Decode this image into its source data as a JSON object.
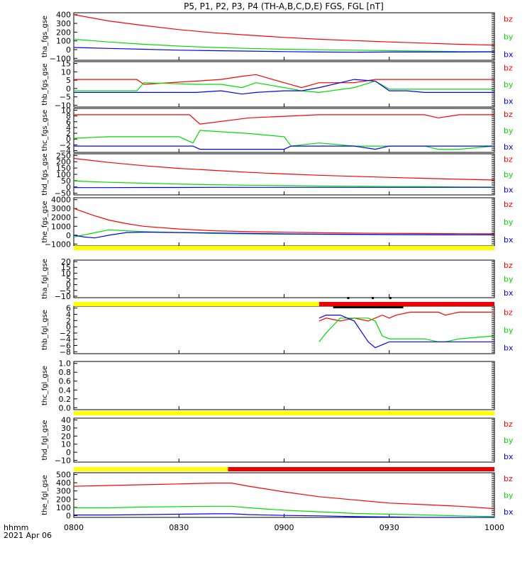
{
  "title": "P5, P1, P2, P3, P4 (TH-A,B,C,D,E) FGS, FGL [nT]",
  "footer": {
    "label1": "hhmm",
    "label2": "2021 Apr 06"
  },
  "xticks": [
    "0800",
    "0830",
    "0900",
    "0930",
    "1000"
  ],
  "colors": {
    "bx": "#0000ff",
    "by": "#00dd00",
    "bz": "#ff0000",
    "bar_yellow": "#ffff00",
    "bar_red": "#ee0000",
    "bar_black": "#000000"
  },
  "chart_data": [
    {
      "type": "line",
      "name": "tha_fgs_gse",
      "ylabel": "tha_fgs_gse",
      "x_range": [
        "0800",
        "1000"
      ],
      "yticks": [
        "400",
        "300",
        "200",
        "100",
        "0",
        "−100"
      ],
      "ylim": [
        -100,
        420
      ],
      "legend": [
        "bz",
        "by",
        "bx"
      ],
      "series": [
        {
          "name": "bz",
          "x": [
            0,
            10,
            20,
            30,
            40,
            50,
            60,
            70,
            80,
            90,
            100,
            110,
            120
          ],
          "y": [
            400,
            330,
            280,
            235,
            200,
            175,
            150,
            130,
            115,
            100,
            88,
            75,
            65
          ]
        },
        {
          "name": "by",
          "x": [
            0,
            10,
            20,
            30,
            40,
            50,
            60,
            70,
            80,
            90,
            100,
            110,
            120
          ],
          "y": [
            130,
            100,
            75,
            55,
            40,
            30,
            20,
            15,
            10,
            5,
            0,
            -5,
            -5
          ]
        },
        {
          "name": "bx",
          "x": [
            0,
            10,
            20,
            30,
            40,
            50,
            60,
            70,
            80,
            90,
            100,
            110,
            120
          ],
          "y": [
            40,
            30,
            20,
            10,
            5,
            0,
            -5,
            -10,
            -12,
            -10,
            -10,
            -10,
            -8
          ]
        }
      ]
    },
    {
      "type": "line",
      "name": "thb_fgs_gse",
      "ylabel": "thb_fgs_gse",
      "x_range": [
        "0800",
        "1000"
      ],
      "yticks": [
        "15",
        "10",
        "5",
        "0",
        "−5",
        "−10"
      ],
      "ylim": [
        -12,
        16
      ],
      "legend": [
        "bz",
        "by",
        "bx"
      ],
      "series": [
        {
          "name": "bz",
          "x": [
            0,
            10,
            18,
            20,
            35,
            42,
            48,
            52,
            60,
            65,
            70,
            80,
            86,
            90,
            95,
            100,
            110,
            120
          ],
          "y": [
            5,
            5,
            5,
            2,
            4,
            5,
            7,
            8,
            3,
            0,
            3,
            3,
            5,
            5,
            5,
            5,
            5,
            5
          ]
        },
        {
          "name": "by",
          "x": [
            0,
            10,
            18,
            20,
            35,
            42,
            48,
            52,
            60,
            65,
            70,
            80,
            86,
            90,
            95,
            100,
            110,
            120
          ],
          "y": [
            -2,
            -2,
            -2,
            3,
            2,
            2,
            0,
            3,
            0,
            -2,
            -3,
            0,
            4,
            -1,
            -1,
            -1,
            -1,
            -1
          ]
        },
        {
          "name": "bx",
          "x": [
            0,
            10,
            18,
            20,
            35,
            42,
            48,
            52,
            60,
            65,
            70,
            80,
            86,
            90,
            95,
            100,
            110,
            120
          ],
          "y": [
            -3,
            -3,
            -3,
            -3,
            -3,
            -2,
            -4,
            -3,
            -2,
            -2,
            0,
            5,
            4,
            -2,
            -2,
            -3,
            -3,
            -3
          ]
        }
      ]
    },
    {
      "type": "line",
      "name": "thc_fgs_gse",
      "ylabel": "thc_fgs_gse",
      "x_range": [
        "0800",
        "1000"
      ],
      "yticks": [
        "10",
        "8",
        "6",
        "4",
        "2",
        "0",
        "−2",
        "−4"
      ],
      "ylim": [
        -4,
        10
      ],
      "legend": [
        "bz",
        "by",
        "bx"
      ],
      "series": [
        {
          "name": "bz",
          "x": [
            0,
            10,
            20,
            33,
            36,
            50,
            60,
            70,
            80,
            90,
            100,
            104,
            110,
            120
          ],
          "y": [
            8,
            8,
            8,
            8,
            5,
            7,
            7.5,
            8,
            8,
            8,
            8,
            7,
            8,
            8
          ],
          "__": 0
        },
        {
          "name": "by",
          "x": [
            0,
            10,
            20,
            30,
            34,
            36,
            50,
            60,
            62,
            70,
            80,
            90,
            100,
            104,
            110,
            120
          ],
          "y": [
            0.5,
            1,
            1,
            1,
            -1,
            3,
            2,
            1,
            -2,
            -1,
            -2,
            -2,
            -2,
            -3,
            -3,
            -2
          ]
        },
        {
          "name": "bx",
          "x": [
            0,
            10,
            20,
            34,
            36,
            50,
            60,
            62,
            70,
            80,
            86,
            90,
            100,
            104,
            110,
            120
          ],
          "y": [
            -2,
            -2,
            -2,
            -2,
            -3,
            -3,
            -3,
            -2,
            -2,
            -2,
            -3,
            -2,
            -2,
            -2,
            -2,
            -2
          ]
        }
      ]
    },
    {
      "type": "line",
      "name": "thd_fgs_gse",
      "ylabel": "thd_fgs_gse",
      "x_range": [
        "0800",
        "1000"
      ],
      "yticks": [
        "250",
        "200",
        "150",
        "100",
        "50",
        "0",
        "−50"
      ],
      "ylim": [
        -50,
        260
      ],
      "legend": [
        "bz",
        "by",
        "bx"
      ],
      "series": [
        {
          "name": "bz",
          "x": [
            0,
            10,
            20,
            30,
            40,
            50,
            60,
            70,
            80,
            90,
            100,
            110,
            120
          ],
          "y": [
            225,
            195,
            170,
            150,
            135,
            120,
            108,
            98,
            90,
            82,
            75,
            68,
            62
          ]
        },
        {
          "name": "by",
          "x": [
            0,
            10,
            20,
            30,
            40,
            50,
            60,
            70,
            80,
            90,
            100,
            110,
            120
          ],
          "y": [
            55,
            45,
            38,
            32,
            27,
            23,
            20,
            17,
            15,
            13,
            12,
            10,
            9
          ]
        },
        {
          "name": "bx",
          "x": [
            0,
            10,
            20,
            30,
            40,
            50,
            60,
            70,
            80,
            90,
            100,
            110,
            120
          ],
          "y": [
            5,
            5,
            6,
            6,
            7,
            7,
            7,
            7,
            7,
            7,
            7,
            7,
            7
          ]
        }
      ]
    },
    {
      "type": "line",
      "name": "the_fgs_gse",
      "ylabel": "the_fgs_gse",
      "x_range": [
        "0800",
        "1000"
      ],
      "yticks": [
        "4000",
        "3000",
        "2000",
        "1000",
        "0",
        "−1000"
      ],
      "ylim": [
        -1200,
        4200
      ],
      "legend": [
        "bz",
        "by",
        "bx"
      ],
      "series": [
        {
          "name": "bz",
          "x": [
            0,
            5,
            10,
            15,
            20,
            30,
            40,
            50,
            60,
            70,
            80,
            90,
            100,
            110,
            120
          ],
          "y": [
            3000,
            2300,
            1700,
            1300,
            1000,
            700,
            500,
            400,
            330,
            280,
            240,
            210,
            190,
            170,
            160
          ]
        },
        {
          "name": "by",
          "x": [
            0,
            5,
            10,
            15,
            20,
            30,
            40,
            50,
            60,
            70,
            80,
            90,
            100,
            110,
            120
          ],
          "y": [
            -200,
            200,
            600,
            500,
            400,
            300,
            200,
            150,
            120,
            100,
            80,
            60,
            50,
            40,
            40
          ]
        },
        {
          "name": "bx",
          "x": [
            0,
            3,
            6,
            10,
            15,
            20,
            30,
            40,
            50,
            60,
            70,
            80,
            90,
            100,
            110,
            120
          ],
          "y": [
            0,
            -200,
            -300,
            0,
            300,
            350,
            300,
            250,
            200,
            150,
            120,
            100,
            80,
            60,
            50,
            50
          ]
        }
      ]
    },
    {
      "type": "line",
      "name": "tha_fgl_gse",
      "ylabel": "tha_fgl_gse",
      "x_range": [
        "0800",
        "1000"
      ],
      "yticks": [
        "20",
        "15",
        "10",
        "5",
        "0",
        "−5",
        "−10"
      ],
      "ylim": [
        -12,
        22
      ],
      "legend": [
        "bz",
        "by",
        "bx"
      ],
      "series": []
    },
    {
      "type": "line",
      "name": "thb_fgl_gse",
      "ylabel": "thb_fgl_gse",
      "x_range": [
        "0800",
        "1000"
      ],
      "yticks": [
        "6",
        "4",
        "2",
        "0",
        "−2",
        "−4",
        "−6",
        "−8"
      ],
      "ylim": [
        -9,
        7
      ],
      "legend": [
        "bz",
        "by",
        "bx"
      ],
      "series": [
        {
          "name": "bz",
          "x": [
            70,
            72,
            76,
            80,
            84,
            86,
            88,
            90,
            92,
            96,
            100,
            104,
            106,
            110,
            120
          ],
          "y": [
            2,
            3,
            2,
            3,
            2,
            3,
            4,
            3,
            4,
            5,
            5,
            5,
            4,
            5,
            5
          ]
        },
        {
          "name": "by",
          "x": [
            70,
            72,
            76,
            80,
            84,
            86,
            88,
            90,
            92,
            96,
            100,
            104,
            106,
            110,
            120
          ],
          "y": [
            -5,
            -2,
            3,
            3,
            3,
            2,
            -3,
            -4,
            -4,
            -4,
            -4,
            -5,
            -5,
            -4,
            -3
          ]
        },
        {
          "name": "bx",
          "x": [
            70,
            72,
            76,
            80,
            84,
            86,
            88,
            90,
            92,
            96,
            100,
            104,
            106,
            110,
            120
          ],
          "y": [
            3,
            4,
            4,
            2,
            -5,
            -7,
            -6,
            -5,
            -5,
            -5,
            -5,
            -5,
            -5,
            -5,
            -5
          ]
        }
      ]
    },
    {
      "type": "line",
      "name": "thc_fgl_gse",
      "ylabel": "thc_fgl_gse",
      "x_range": [
        "0800",
        "1000"
      ],
      "yticks": [
        "1.0",
        "0.8",
        "0.6",
        "0.4",
        "0.2",
        "0.0"
      ],
      "ylim": [
        -0.1,
        1.1
      ],
      "legend": [],
      "series": []
    },
    {
      "type": "line",
      "name": "thd_fgl_gse",
      "ylabel": "thd_fgl_gse",
      "x_range": [
        "0800",
        "1000"
      ],
      "yticks": [
        "40",
        "30",
        "20",
        "10",
        "0",
        "−10"
      ],
      "ylim": [
        -12,
        44
      ],
      "legend": [
        "bz",
        "by",
        "bx"
      ],
      "series": []
    },
    {
      "type": "line",
      "name": "the_fgl_gse",
      "ylabel": "the_fgl_gse",
      "x_range": [
        "0800",
        "1000"
      ],
      "yticks": [
        "500",
        "400",
        "300",
        "200",
        "100",
        "0"
      ],
      "ylim": [
        0,
        560
      ],
      "legend": [
        "bz",
        "by",
        "bx"
      ],
      "series": [
        {
          "name": "bz",
          "x": [
            0,
            10,
            20,
            30,
            40,
            45,
            50,
            60,
            70,
            80,
            90,
            100,
            110,
            120
          ],
          "y": [
            390,
            400,
            410,
            420,
            430,
            430,
            390,
            320,
            260,
            220,
            180,
            160,
            140,
            110
          ]
        },
        {
          "name": "by",
          "x": [
            0,
            10,
            20,
            30,
            40,
            45,
            50,
            60,
            70,
            80,
            90,
            100,
            110,
            120
          ],
          "y": [
            120,
            120,
            130,
            135,
            140,
            140,
            120,
            90,
            70,
            50,
            40,
            30,
            20,
            10
          ]
        },
        {
          "name": "bx",
          "x": [
            0,
            10,
            20,
            30,
            40,
            45,
            50,
            60,
            70,
            80,
            90,
            100,
            110,
            120
          ],
          "y": [
            30,
            30,
            35,
            40,
            45,
            45,
            35,
            25,
            20,
            10,
            5,
            0,
            0,
            0
          ]
        }
      ]
    }
  ],
  "status_bars": [
    {
      "name": "bar-tha",
      "segments": [
        {
          "from": 0,
          "to": 120,
          "color": "yellow"
        }
      ]
    },
    {
      "name": "bar-thb",
      "segments": [
        {
          "from": 0,
          "to": 70,
          "color": "yellow"
        },
        {
          "from": 70,
          "to": 120,
          "color": "red"
        }
      ]
    },
    {
      "name": "bar-thd",
      "segments": [
        {
          "from": 0,
          "to": 120,
          "color": "yellow"
        }
      ]
    },
    {
      "name": "bar-the",
      "segments": [
        {
          "from": 0,
          "to": 44,
          "color": "yellow"
        },
        {
          "from": 44,
          "to": 120,
          "color": "red"
        }
      ]
    }
  ]
}
